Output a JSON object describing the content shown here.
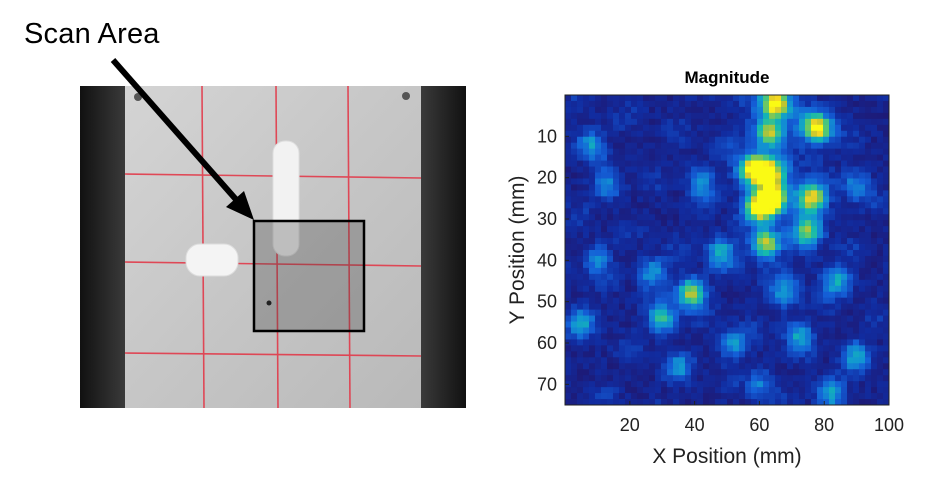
{
  "annotation": {
    "label": "Scan Area"
  },
  "colors": {
    "arrow": "#000000",
    "grid_lines": "#e23a4a",
    "plate": "#c9c9c9",
    "mat": "#2c2c2c",
    "scan_box_border": "#000000"
  },
  "chart_data": {
    "type": "heatmap",
    "title": "Magnitude",
    "xlabel": "X Position (mm)",
    "ylabel": "Y Position (mm)",
    "xlim": [
      0,
      100
    ],
    "ylim": [
      0,
      75
    ],
    "y_axis_inverted": true,
    "x_ticks": [
      20,
      40,
      60,
      80,
      100
    ],
    "y_ticks": [
      10,
      20,
      30,
      40,
      50,
      60,
      70
    ],
    "colormap": "parula",
    "value_range": [
      0,
      1
    ],
    "hotspots": [
      {
        "x": 65,
        "y": 2,
        "value": 1.0
      },
      {
        "x": 78,
        "y": 8,
        "value": 0.95
      },
      {
        "x": 63,
        "y": 9,
        "value": 0.7
      },
      {
        "x": 58,
        "y": 18,
        "value": 0.95
      },
      {
        "x": 63,
        "y": 19,
        "value": 0.85
      },
      {
        "x": 64,
        "y": 25,
        "value": 1.0
      },
      {
        "x": 60,
        "y": 27,
        "value": 0.9
      },
      {
        "x": 76,
        "y": 25,
        "value": 0.85
      },
      {
        "x": 75,
        "y": 33,
        "value": 0.6
      },
      {
        "x": 62,
        "y": 36,
        "value": 0.75
      },
      {
        "x": 39,
        "y": 48,
        "value": 0.8
      },
      {
        "x": 48,
        "y": 38,
        "value": 0.45
      },
      {
        "x": 30,
        "y": 54,
        "value": 0.55
      },
      {
        "x": 8,
        "y": 12,
        "value": 0.4
      },
      {
        "x": 13,
        "y": 22,
        "value": 0.35
      },
      {
        "x": 10,
        "y": 40,
        "value": 0.35
      },
      {
        "x": 5,
        "y": 55,
        "value": 0.4
      },
      {
        "x": 52,
        "y": 60,
        "value": 0.4
      },
      {
        "x": 84,
        "y": 45,
        "value": 0.45
      },
      {
        "x": 90,
        "y": 63,
        "value": 0.4
      },
      {
        "x": 72,
        "y": 58,
        "value": 0.4
      },
      {
        "x": 27,
        "y": 43,
        "value": 0.4
      },
      {
        "x": 42,
        "y": 21,
        "value": 0.35
      },
      {
        "x": 90,
        "y": 22,
        "value": 0.35
      },
      {
        "x": 68,
        "y": 48,
        "value": 0.35
      },
      {
        "x": 82,
        "y": 72,
        "value": 0.45
      },
      {
        "x": 60,
        "y": 70,
        "value": 0.3
      },
      {
        "x": 35,
        "y": 66,
        "value": 0.3
      }
    ]
  }
}
